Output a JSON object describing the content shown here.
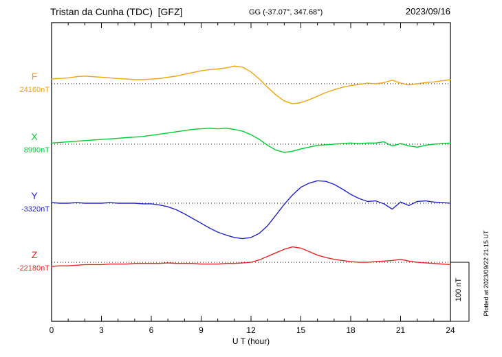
{
  "header": {
    "station_title": "Tristan da Cunha (TDC)  [GFZ]",
    "coordinates": "GG (-37.07°, 347.68°)",
    "date": "2023/09/16"
  },
  "axis": {
    "xlabel": "U T (hour)"
  },
  "side": {
    "plotted_at": "Plotted at 2023/09/22 21:15 UT",
    "scale_label": "100 nT"
  },
  "chart_data": {
    "type": "line",
    "title": "Magnetogram Tristan da Cunha (TDC) [GFZ] 2023/09/16",
    "xlabel": "U T (hour)",
    "x_range": [
      0,
      24
    ],
    "x_ticks": [
      0,
      3,
      6,
      9,
      12,
      15,
      18,
      21,
      24
    ],
    "x_minor_step": 1,
    "scale_bar_nT": 100,
    "grid": "dotted horizontal baselines per component",
    "x": [
      0,
      0.5,
      1,
      1.5,
      2,
      2.5,
      3,
      3.5,
      4,
      4.5,
      5,
      5.5,
      6,
      6.5,
      7,
      7.5,
      8,
      8.5,
      9,
      9.5,
      10,
      10.5,
      11,
      11.5,
      12,
      12.5,
      13,
      13.5,
      14,
      14.5,
      15,
      15.5,
      16,
      16.5,
      17,
      17.5,
      18,
      18.5,
      19,
      19.5,
      20,
      20.5,
      21,
      21.5,
      22,
      22.5,
      23,
      23.5,
      24
    ],
    "series": [
      {
        "name": "F",
        "label": "F",
        "baseline_label": "24160nT",
        "baseline_nT": 24160,
        "color": "#f2a30f",
        "values_offset_nT": [
          8,
          9,
          10,
          12,
          13,
          12,
          11,
          10,
          9,
          8,
          7,
          7,
          8,
          9,
          11,
          13,
          16,
          19,
          22,
          24,
          25,
          27,
          30,
          28,
          20,
          8,
          -6,
          -19,
          -29,
          -34,
          -32,
          -27,
          -21,
          -15,
          -10,
          -6,
          -3,
          -1,
          1,
          0,
          2,
          6,
          1,
          -2,
          0,
          2,
          3,
          5,
          7
        ]
      },
      {
        "name": "X",
        "label": "X",
        "baseline_label": "8990nT",
        "baseline_nT": 8990,
        "color": "#00cc33",
        "values_offset_nT": [
          2,
          3,
          4,
          5,
          6,
          7,
          8,
          9,
          10,
          11,
          12,
          13,
          15,
          17,
          19,
          21,
          23,
          25,
          26,
          27,
          26,
          27,
          25,
          22,
          16,
          8,
          -2,
          -10,
          -14,
          -12,
          -8,
          -5,
          -2,
          -1,
          0,
          1,
          2,
          1,
          2,
          2,
          4,
          -3,
          1,
          -3,
          -5,
          -2,
          0,
          1,
          2
        ]
      },
      {
        "name": "Y",
        "label": "Y",
        "baseline_label": "-3320nT",
        "baseline_nT": -3320,
        "color": "#2222cc",
        "values_offset_nT": [
          1,
          0,
          0,
          1,
          0,
          0,
          0,
          1,
          0,
          0,
          0,
          -1,
          -1,
          -3,
          -6,
          -11,
          -18,
          -26,
          -34,
          -42,
          -49,
          -54,
          -58,
          -60,
          -58,
          -51,
          -38,
          -20,
          -2,
          14,
          27,
          34,
          38,
          37,
          32,
          24,
          15,
          8,
          3,
          4,
          -1,
          -10,
          2,
          -4,
          3,
          4,
          2,
          1,
          0
        ]
      },
      {
        "name": "Z",
        "label": "Z",
        "baseline_label": "-22180nT",
        "baseline_nT": -22180,
        "color": "#ee2222",
        "values_offset_nT": [
          -7,
          -6,
          -6,
          -5,
          -4,
          -4,
          -4,
          -3,
          -3,
          -3,
          -2,
          -2,
          -2,
          -2,
          -1,
          -2,
          -2,
          -2,
          -3,
          -3,
          -3,
          -2,
          -2,
          -1,
          0,
          4,
          10,
          16,
          22,
          26,
          24,
          18,
          12,
          8,
          5,
          3,
          1,
          0,
          0,
          1,
          2,
          3,
          5,
          2,
          0,
          -1,
          -2,
          -3,
          -4
        ]
      }
    ]
  }
}
